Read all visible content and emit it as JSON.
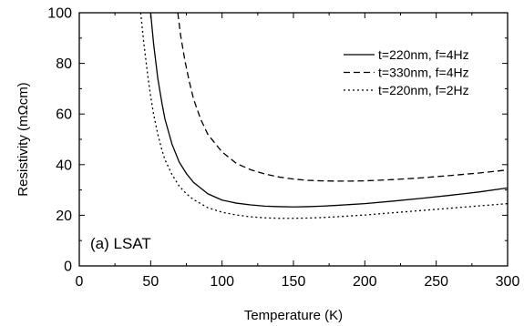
{
  "chart_data": {
    "type": "line",
    "xlabel": "Temperature (K)",
    "ylabel": "Resistivity (mΩcm)",
    "xlim": [
      0,
      300
    ],
    "ylim": [
      0,
      100
    ],
    "x_ticks": [
      0,
      50,
      100,
      150,
      200,
      250,
      300
    ],
    "y_ticks": [
      0,
      20,
      40,
      60,
      80,
      100
    ],
    "grid": false,
    "legend_position": "top-right",
    "annotation": "(a) LSAT",
    "series": [
      {
        "name": "t=220nm, f=4Hz",
        "line_style": "solid",
        "x": [
          50,
          52,
          55,
          58,
          60,
          65,
          70,
          75,
          80,
          90,
          100,
          110,
          120,
          130,
          140,
          150,
          160,
          170,
          180,
          200,
          220,
          240,
          260,
          280,
          300
        ],
        "y": [
          100,
          88,
          74,
          64,
          58,
          48,
          41,
          36.5,
          33,
          28.5,
          26,
          24.8,
          24.1,
          23.6,
          23.4,
          23.3,
          23.4,
          23.6,
          23.9,
          24.6,
          25.6,
          26.7,
          27.9,
          29.2,
          30.8
        ]
      },
      {
        "name": "t=330nm, f=4Hz",
        "line_style": "dashed",
        "x": [
          69,
          71,
          74,
          77,
          80,
          85,
          90,
          100,
          110,
          120,
          130,
          140,
          150,
          160,
          170,
          180,
          190,
          200,
          220,
          240,
          260,
          280,
          300
        ],
        "y": [
          100,
          91,
          81,
          73,
          66,
          58,
          52,
          45,
          40.5,
          38,
          36.3,
          35.1,
          34.3,
          33.8,
          33.6,
          33.5,
          33.5,
          33.6,
          34.1,
          34.8,
          35.7,
          36.7,
          37.9
        ]
      },
      {
        "name": "t=220nm, f=2Hz",
        "line_style": "dotted",
        "x": [
          43,
          45,
          48,
          50,
          52,
          55,
          58,
          60,
          65,
          70,
          75,
          80,
          90,
          100,
          110,
          120,
          130,
          140,
          150,
          160,
          170,
          180,
          200,
          220,
          240,
          260,
          280,
          300
        ],
        "y": [
          100,
          89,
          75,
          67,
          60,
          52,
          45.5,
          42,
          36,
          31.5,
          28.5,
          26.2,
          23,
          21.2,
          20.1,
          19.4,
          19,
          18.8,
          18.8,
          18.9,
          19.1,
          19.4,
          20.1,
          21,
          21.9,
          22.8,
          23.7,
          24.6
        ]
      }
    ]
  }
}
